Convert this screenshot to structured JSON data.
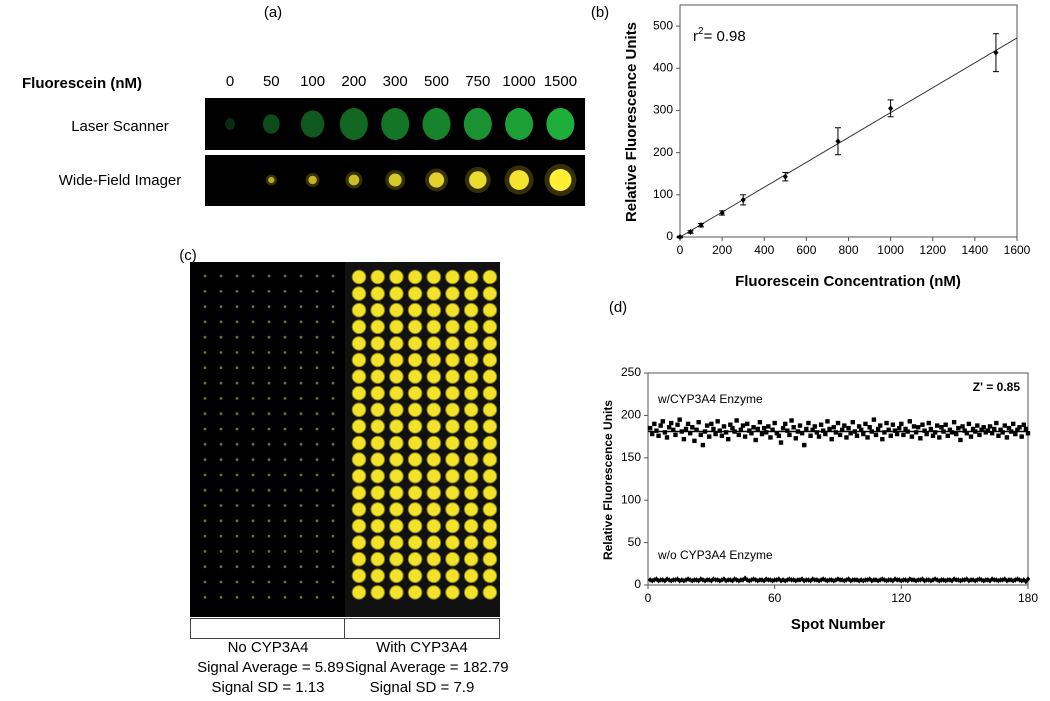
{
  "panel_labels": [
    "(a)",
    "(b)",
    "(c)",
    "(d)"
  ],
  "panel_a": {
    "header": "Fluorescein (nM)",
    "concentrations": [
      0,
      50,
      100,
      200,
      300,
      500,
      750,
      1000,
      1500
    ],
    "rows": [
      "Laser Scanner",
      "Wide-Field Imager"
    ]
  },
  "panel_c": {
    "columns": [
      {
        "name": "No CYP3A4",
        "average": "Signal Average = 5.89",
        "sd": "Signal SD = 1.13"
      },
      {
        "name": "With CYP3A4",
        "average": "Signal Average = 182.79",
        "sd": "Signal SD = 7.9"
      }
    ]
  },
  "chart_data": [
    {
      "type": "scatter",
      "x_label": "Fluorescein Concentration (nM)",
      "y_label": "Relative Fluorescence Units",
      "annotation": {
        "base": "r",
        "superscript": "2",
        "rest": "= 0.98"
      },
      "x": [
        0,
        50,
        100,
        200,
        300,
        500,
        750,
        1000,
        1500
      ],
      "series": [
        {
          "color": "#000000",
          "values": [
            0,
            12,
            28,
            57,
            88,
            143,
            227,
            305,
            437
          ],
          "errors": [
            2,
            3,
            4,
            5,
            12,
            10,
            32,
            20,
            45
          ]
        }
      ],
      "fit_line": {
        "x": [
          0,
          1600
        ],
        "y": [
          0,
          472
        ]
      },
      "xlim": [
        0,
        1600
      ],
      "xticks": [
        0,
        200,
        400,
        600,
        800,
        1000,
        1200,
        1400,
        1600
      ],
      "ylim": [
        0,
        550
      ],
      "yticks": [
        0,
        100,
        200,
        300,
        400,
        500
      ]
    },
    {
      "type": "scatter",
      "x_label": "Spot Number",
      "y_label": "Relative Fluorescence Units",
      "annotation": "Z' = 0.85",
      "x": [
        1,
        2,
        3,
        4,
        5,
        6,
        7,
        8,
        9,
        10,
        11,
        12,
        13,
        14,
        15,
        16,
        17,
        18,
        19,
        20,
        21,
        22,
        23,
        24,
        25,
        26,
        27,
        28,
        29,
        30,
        31,
        32,
        33,
        34,
        35,
        36,
        37,
        38,
        39,
        40,
        41,
        42,
        43,
        44,
        45,
        46,
        47,
        48,
        49,
        50,
        51,
        52,
        53,
        54,
        55,
        56,
        57,
        58,
        59,
        60,
        61,
        62,
        63,
        64,
        65,
        66,
        67,
        68,
        69,
        70,
        71,
        72,
        73,
        74,
        75,
        76,
        77,
        78,
        79,
        80,
        81,
        82,
        83,
        84,
        85,
        86,
        87,
        88,
        89,
        90,
        91,
        92,
        93,
        94,
        95,
        96,
        97,
        98,
        99,
        100,
        101,
        102,
        103,
        104,
        105,
        106,
        107,
        108,
        109,
        110,
        111,
        112,
        113,
        114,
        115,
        116,
        117,
        118,
        119,
        120,
        121,
        122,
        123,
        124,
        125,
        126,
        127,
        128,
        129,
        130,
        131,
        132,
        133,
        134,
        135,
        136,
        137,
        138,
        139,
        140,
        141,
        142,
        143,
        144,
        145,
        146,
        147,
        148,
        149,
        150,
        151,
        152,
        153,
        154,
        155,
        156,
        157,
        158,
        159,
        160,
        161,
        162,
        163,
        164,
        165,
        166,
        167,
        168,
        169,
        170,
        171,
        172,
        173,
        174,
        175,
        176,
        177,
        178,
        179,
        180
      ],
      "series": [
        {
          "name": "w/CYP3A4 Enzyme",
          "color": "#000000",
          "marker": "square",
          "values": [
            185,
            178,
            190,
            182,
            176,
            188,
            193,
            180,
            174,
            186,
            191,
            183,
            177,
            189,
            195,
            181,
            172,
            184,
            190,
            179,
            186,
            170,
            183,
            192,
            177,
            165,
            181,
            188,
            175,
            190,
            184,
            178,
            193,
            182,
            176,
            187,
            180,
            172,
            189,
            185,
            181,
            194,
            177,
            183,
            188,
            175,
            190,
            182,
            179,
            186,
            171,
            184,
            192,
            178,
            185,
            180,
            187,
            174,
            183,
            191,
            179,
            176,
            168,
            185,
            190,
            182,
            177,
            194,
            186,
            173,
            181,
            188,
            179,
            165,
            184,
            191,
            176,
            183,
            187,
            180,
            175,
            189,
            182,
            178,
            193,
            184,
            172,
            186,
            180,
            191,
            177,
            183,
            188,
            174,
            185,
            179,
            192,
            181,
            176,
            187,
            183,
            178,
            190,
            174,
            186,
            181,
            195,
            177,
            184,
            188,
            172,
            180,
            191,
            183,
            176,
            189,
            182,
            178,
            185,
            190,
            177,
            184,
            181,
            193,
            175,
            187,
            180,
            186,
            173,
            189,
            182,
            178,
            191,
            184,
            176,
            180,
            188,
            174,
            186,
            181,
            189,
            176,
            183,
            180,
            192,
            178,
            185,
            171,
            187,
            182,
            179,
            190,
            175,
            184,
            181,
            188,
            177,
            183,
            186,
            180,
            182,
            187,
            179,
            184,
            191,
            176,
            183,
            180,
            188,
            174,
            185,
            181,
            190,
            178,
            183,
            186,
            175,
            189,
            184,
            179
          ]
        },
        {
          "name": "w/o CYP3A4 Enzyme",
          "color": "#000000",
          "marker": "diamond",
          "values": [
            6,
            5,
            6,
            7,
            5,
            6,
            6,
            5,
            7,
            6,
            5,
            6,
            6,
            7,
            5,
            6,
            5,
            6,
            7,
            6,
            5,
            6,
            6,
            5,
            7,
            6,
            5,
            6,
            6,
            5,
            7,
            6,
            6,
            5,
            6,
            7,
            5,
            6,
            6,
            5,
            7,
            6,
            5,
            6,
            6,
            8,
            6,
            5,
            6,
            7,
            6,
            5,
            6,
            6,
            5,
            7,
            6,
            6,
            5,
            6,
            6,
            7,
            5,
            6,
            5,
            6,
            7,
            6,
            6,
            5,
            6,
            6,
            7,
            5,
            6,
            6,
            5,
            7,
            6,
            6,
            5,
            6,
            7,
            6,
            5,
            6,
            6,
            5,
            6,
            7,
            6,
            6,
            5,
            6,
            7,
            5,
            6,
            6,
            6,
            5,
            6,
            5,
            6,
            6,
            7,
            5,
            6,
            6,
            5,
            6,
            7,
            6,
            5,
            6,
            6,
            5,
            7,
            6,
            6,
            5,
            6,
            6,
            5,
            7,
            6,
            6,
            5,
            6,
            6,
            7,
            5,
            6,
            6,
            5,
            6,
            7,
            6,
            5,
            6,
            6,
            5,
            6,
            6,
            5,
            7,
            6,
            6,
            5,
            6,
            6,
            7,
            5,
            6,
            6,
            5,
            6,
            7,
            6,
            5,
            6,
            6,
            5,
            7,
            6,
            6,
            5,
            6,
            6,
            7,
            5,
            6,
            6,
            5,
            6,
            7,
            6,
            5,
            6,
            4,
            7
          ]
        }
      ],
      "hlines": [
        181,
        6
      ],
      "xlim": [
        0,
        180
      ],
      "xticks": [
        0,
        60,
        120,
        180
      ],
      "ylim": [
        0,
        250
      ],
      "yticks": [
        0,
        50,
        100,
        150,
        200,
        250
      ]
    }
  ]
}
